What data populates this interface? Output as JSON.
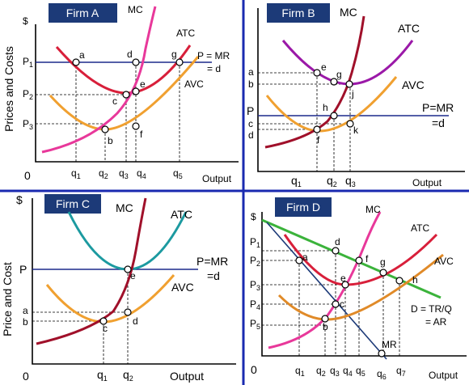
{
  "firm_a": {
    "title": "Firm A",
    "dollar": "$",
    "ylabel": "Prices and Costs",
    "mc": "MC",
    "atc": "ATC",
    "avc": "AVC",
    "price_line": "P = MR",
    "price_line2": "= d",
    "origin": "0",
    "xlabel": "Output",
    "p_labels": [
      {
        "p": "P",
        "s": "1"
      },
      {
        "p": "P",
        "s": "2"
      },
      {
        "p": "P",
        "s": "3"
      }
    ],
    "q_labels": [
      {
        "q": "q",
        "s": "1"
      },
      {
        "q": "q",
        "s": "2"
      },
      {
        "q": "q",
        "s": "3"
      },
      {
        "q": "q",
        "s": "4"
      },
      {
        "q": "q",
        "s": "5"
      }
    ],
    "points": [
      "a",
      "d",
      "g",
      "e",
      "c",
      "b",
      "f"
    ]
  },
  "firm_b": {
    "title": "Firm B",
    "mc": "MC",
    "atc": "ATC",
    "avc": "AVC",
    "price_line": "P=MR",
    "price_line2": "=d",
    "xlabel": "Output",
    "y_labels": [
      "a",
      "b",
      "P",
      "c",
      "d"
    ],
    "q_labels": [
      {
        "q": "q",
        "s": "1"
      },
      {
        "q": "q",
        "s": "2"
      },
      {
        "q": "q",
        "s": "3"
      }
    ],
    "points": [
      "e",
      "g",
      "j",
      "h",
      "k",
      "f"
    ]
  },
  "firm_c": {
    "title": "Firm C",
    "dollar": "$",
    "ylabel": "Price and Cost",
    "mc": "MC",
    "atc": "ATC",
    "avc": "AVC",
    "price_line": "P=MR",
    "price_line2": "=d",
    "origin": "0",
    "xlabel": "Output",
    "y_labels": [
      "P",
      "a",
      "b"
    ],
    "q_labels": [
      {
        "q": "q",
        "s": "1"
      },
      {
        "q": "q",
        "s": "2"
      }
    ],
    "points": [
      "e",
      "c",
      "d"
    ]
  },
  "firm_d": {
    "title": "Firm D",
    "dollar": "$",
    "mc": "MC",
    "atc": "ATC",
    "avc": "AVC",
    "demand": "D = TR/Q",
    "demand2": "= AR",
    "mr": "MR",
    "origin": "0",
    "xlabel": "Output",
    "p_labels": [
      {
        "p": "P",
        "s": "1"
      },
      {
        "p": "P",
        "s": "2"
      },
      {
        "p": "P",
        "s": "3"
      },
      {
        "p": "P",
        "s": "4"
      },
      {
        "p": "P",
        "s": "5"
      }
    ],
    "q_labels": [
      {
        "q": "q",
        "s": "1"
      },
      {
        "q": "q",
        "s": "2"
      },
      {
        "q": "q",
        "s": "3"
      },
      {
        "q": "q",
        "s": "4"
      },
      {
        "q": "q",
        "s": "5"
      },
      {
        "q": "q",
        "s": "6"
      },
      {
        "q": "q",
        "s": "7"
      }
    ],
    "points": [
      "d",
      "a",
      "f",
      "g",
      "h",
      "e",
      "c",
      "b"
    ]
  },
  "colors": {
    "title_bg": "#1c3a78",
    "divider": "#1a2ab0",
    "price_line": "#1c2a8c"
  }
}
